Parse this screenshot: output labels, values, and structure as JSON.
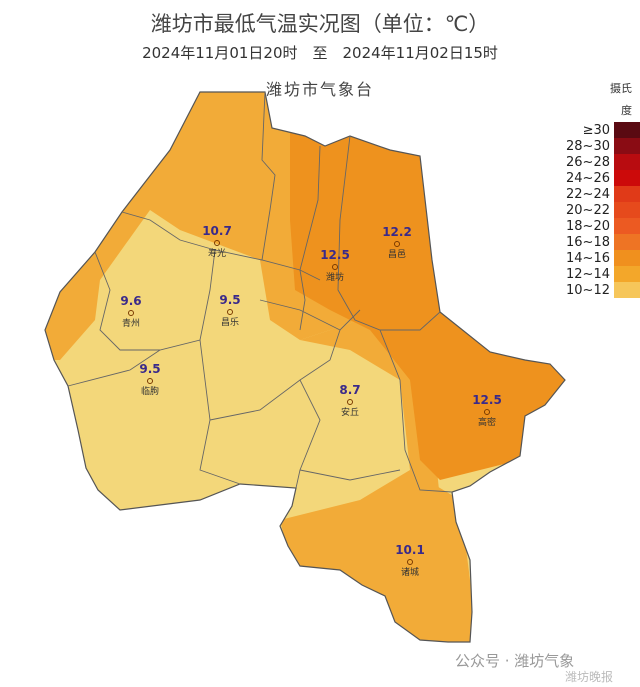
{
  "title": "潍坊市最低气温实况图（单位：℃）",
  "subtitle": "2024年11月01日20时　至　2024年11月02日15时",
  "agency": "潍坊市气象台",
  "legend": {
    "unit_line1": "摄氏",
    "unit_line2": "度",
    "items": [
      {
        "label": "≥30",
        "color": "#5a0a12"
      },
      {
        "label": "28~30",
        "color": "#8a0c14"
      },
      {
        "label": "26~28",
        "color": "#b80c10"
      },
      {
        "label": "24~26",
        "color": "#cc0a0a"
      },
      {
        "label": "22~24",
        "color": "#e03a18"
      },
      {
        "label": "20~22",
        "color": "#e64a1c"
      },
      {
        "label": "18~20",
        "color": "#ec5a22"
      },
      {
        "label": "16~18",
        "color": "#ee7424"
      },
      {
        "label": "14~16",
        "color": "#f0901e"
      },
      {
        "label": "12~14",
        "color": "#f3a72a"
      },
      {
        "label": "10~12",
        "color": "#f6c65a"
      }
    ]
  },
  "stations": [
    {
      "name": "寿光",
      "value": "10.7"
    },
    {
      "name": "昌邑",
      "value": "12.2"
    },
    {
      "name": "潍坊",
      "value": "12.5"
    },
    {
      "name": "青州",
      "value": "9.6"
    },
    {
      "name": "昌乐",
      "value": "9.5"
    },
    {
      "name": "临朐",
      "value": "9.5"
    },
    {
      "name": "安丘",
      "value": "8.7"
    },
    {
      "name": "高密",
      "value": "12.5"
    },
    {
      "name": "诸城",
      "value": "10.1"
    }
  ],
  "watermark": {
    "wechat": "公众号 · 潍坊气象",
    "weibo": "潍坊晚报"
  }
}
